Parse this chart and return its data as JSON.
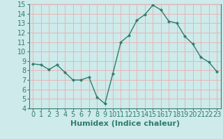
{
  "title": "",
  "xlabel": "Humidex (Indice chaleur)",
  "ylabel": "",
  "x": [
    0,
    1,
    2,
    3,
    4,
    5,
    6,
    7,
    8,
    9,
    10,
    11,
    12,
    13,
    14,
    15,
    16,
    17,
    18,
    19,
    20,
    21,
    22,
    23
  ],
  "y": [
    8.7,
    8.6,
    8.1,
    8.6,
    7.8,
    7.0,
    7.0,
    7.3,
    5.2,
    4.5,
    7.7,
    11.0,
    11.7,
    13.3,
    13.9,
    14.9,
    14.4,
    13.2,
    13.0,
    11.6,
    10.8,
    9.4,
    8.9,
    7.9
  ],
  "line_color": "#2e7d6e",
  "marker": "D",
  "marker_size": 2.2,
  "bg_color": "#ceeaea",
  "grid_color": "#e8b4b4",
  "ylim": [
    4,
    15
  ],
  "yticks": [
    4,
    5,
    6,
    7,
    8,
    9,
    10,
    11,
    12,
    13,
    14,
    15
  ],
  "xticks": [
    0,
    1,
    2,
    3,
    4,
    5,
    6,
    7,
    8,
    9,
    10,
    11,
    12,
    13,
    14,
    15,
    16,
    17,
    18,
    19,
    20,
    21,
    22,
    23
  ],
  "xlabel_fontsize": 8,
  "tick_fontsize": 7,
  "line_width": 1.0,
  "spine_color": "#2e7d6e",
  "label_color": "#2e7d6e"
}
